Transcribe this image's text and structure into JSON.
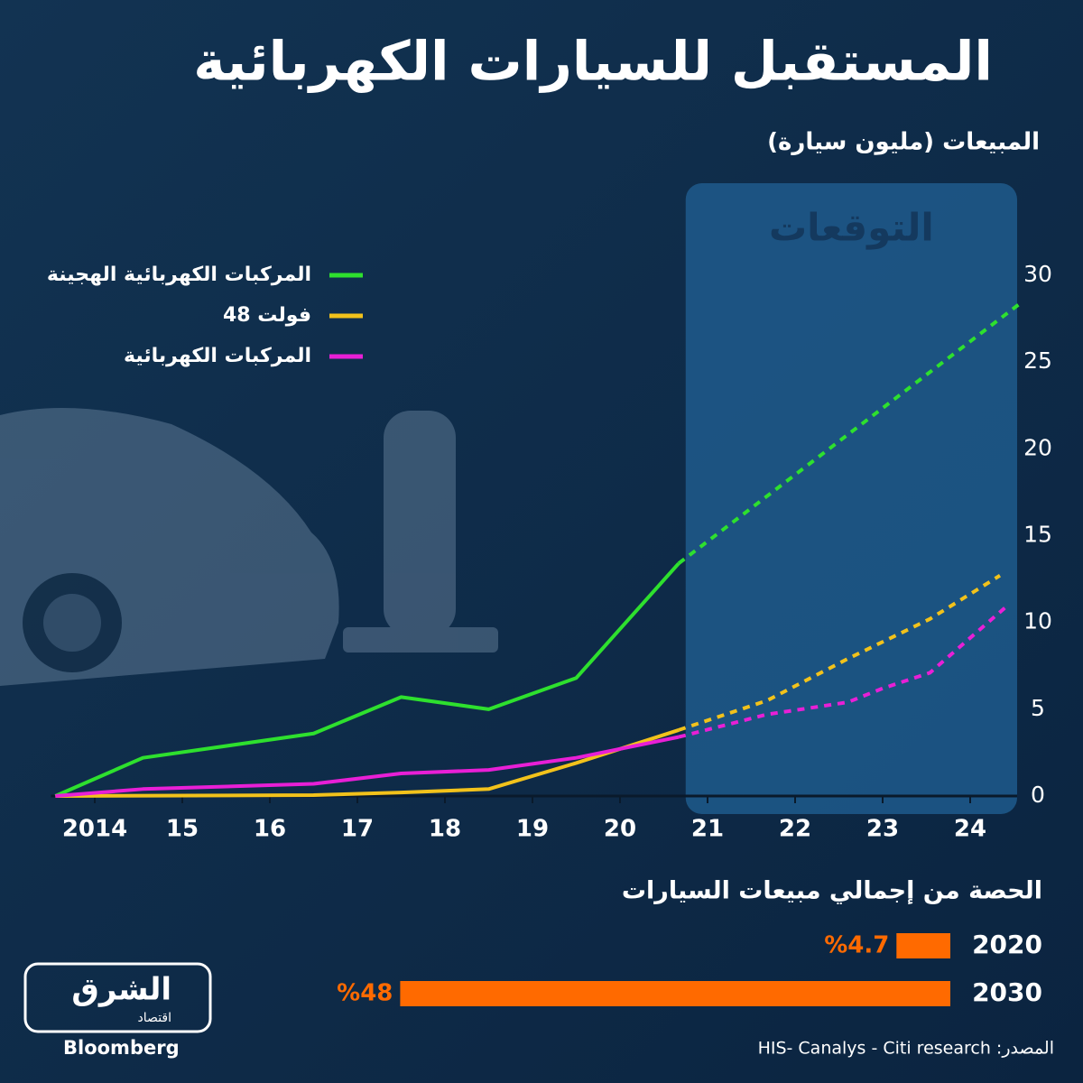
{
  "title": "المستقبل للسيارات الكهربائية",
  "chart_data": [
    {
      "type": "line",
      "y_label": "المبيعات (مليون سيارة)",
      "forecast_region": {
        "label": "التوقعات",
        "start": 2020.75
      },
      "xlim": [
        2013.5,
        2024.5
      ],
      "xticks": [
        2014,
        {
          "value": 2015,
          "label": "15"
        },
        {
          "value": 2016,
          "label": "16"
        },
        {
          "value": 2017,
          "label": "17"
        },
        {
          "value": 2018,
          "label": "18"
        },
        {
          "value": 2019,
          "label": "19"
        },
        {
          "value": 2020,
          "label": "20"
        },
        {
          "value": 2021,
          "label": "21"
        },
        {
          "value": 2022,
          "label": "22"
        },
        {
          "value": 2023,
          "label": "23"
        },
        {
          "value": 2024,
          "label": "24"
        }
      ],
      "ylim": [
        0,
        30
      ],
      "yticks": [
        0,
        5,
        10,
        15,
        20,
        25,
        30
      ],
      "grid": false,
      "legend": "top-left",
      "series": [
        {
          "name": "المركبات الكهربائية الهجينة",
          "color": "#2ee02e",
          "x": [
            2013.55,
            2014.55,
            2016.5,
            2017.5,
            2018.5,
            2019.5,
            2020.67
          ],
          "values": [
            0,
            2.2,
            3.6,
            5.7,
            5.0,
            6.8,
            13.4
          ],
          "forecast": {
            "x": [
              2020.67,
              2024.55
            ],
            "values": [
              13.4,
              28.3
            ]
          }
        },
        {
          "name": "48 فولت",
          "color": "#f2c21b",
          "x": [
            2013.55,
            2016.5,
            2017.5,
            2018.5,
            2019.5,
            2020.67
          ],
          "values": [
            0,
            0.05,
            0.2,
            0.4,
            1.9,
            3.8
          ],
          "forecast": {
            "x": [
              2020.67,
              2021.68,
              2022.6,
              2023.54,
              2024.34
            ],
            "values": [
              3.8,
              5.5,
              7.9,
              10.2,
              12.7
            ]
          }
        },
        {
          "name": "المركبات الكهربائية",
          "color": "#e81fd6",
          "x": [
            2013.55,
            2014.55,
            2016.5,
            2017.5,
            2018.5,
            2019.5,
            2020.67
          ],
          "values": [
            0,
            0.4,
            0.7,
            1.3,
            1.5,
            2.2,
            3.4
          ],
          "forecast": {
            "x": [
              2020.67,
              2021.68,
              2022.6,
              2023.0,
              2023.54,
              2024.41
            ],
            "values": [
              3.4,
              4.7,
              5.4,
              6.2,
              7.1,
              10.9
            ]
          }
        }
      ]
    },
    {
      "type": "hbar",
      "title": "الحصة من إجمالي مبيعات السيارات",
      "categories": [
        "2020",
        "2030"
      ],
      "values": [
        4.7,
        48
      ],
      "value_labels": [
        "%4.7",
        "%48"
      ],
      "color": "#ff6a00"
    }
  ],
  "source": "المصدر: HIS- Canalys - Citi research",
  "logo": {
    "name": "الشرق",
    "sub": "اقتصاد",
    "partner": "Bloomberg"
  }
}
